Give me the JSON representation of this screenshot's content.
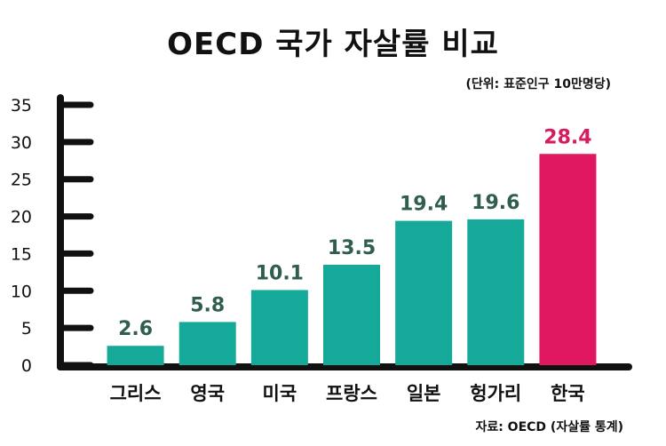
{
  "chart_data": {
    "type": "bar",
    "title": "OECD 국가 자살률 비교",
    "unit_note": "(단위: 표준인구 10만명당)",
    "source": "자료: OECD (자살률 통계)",
    "categories": [
      "그리스",
      "영국",
      "미국",
      "프랑스",
      "일본",
      "헝가리",
      "한국"
    ],
    "values": [
      2.6,
      5.8,
      10.1,
      13.5,
      19.4,
      19.6,
      28.4
    ],
    "value_labels": [
      "2.6",
      "5.8",
      "10.1",
      "13.5",
      "19.4",
      "19.6",
      "28.4"
    ],
    "yticks": [
      "0",
      "5",
      "10",
      "15",
      "20",
      "25",
      "30",
      "35"
    ],
    "ylim": [
      0,
      35
    ],
    "grid": false,
    "colors": {
      "default_bar": "#15a99a",
      "highlight_bar": "#e0185f",
      "default_label": "#2f5e4f",
      "highlight_label": "#d81b5f",
      "axis": "#111111"
    },
    "highlight_index": 6
  }
}
